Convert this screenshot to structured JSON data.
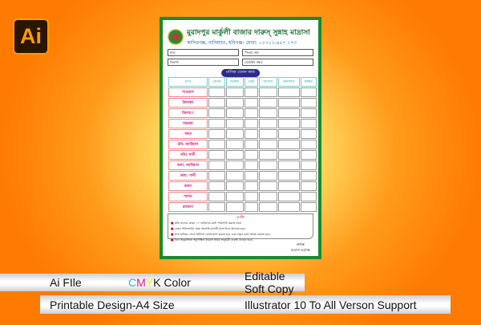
{
  "logo": {
    "text": "Ai"
  },
  "document": {
    "title": "মুরাদপুর মার্কুলী বাজার দারুস্ সুন্নাহ মাদ্রাসা",
    "subtitle": "কাদিরগঞ্জ, বানিয়াচং, হবিগঞ্জ। মোবা: ০১৭১১-৪৫৭ ১৭৩",
    "fields": [
      "নাম:",
      "পিতার নাম:",
      "বিভাগ:",
      "মোবাইল নম্বর:"
    ],
    "card_title": "মাসিক বেতন কার্ড",
    "headers": [
      "মাস",
      "বেতন",
      "বকেয়া",
      "মোট",
      "আদায়",
      "অনাদায়",
      "স্বাক্ষর"
    ],
    "months": [
      "শাওয়াল",
      "জিলকদ",
      "জিলহজ্ব",
      "মহররম",
      "সফর",
      "রবি: আউয়াল",
      "রবিঃ সানী",
      "জমা: আউয়াল",
      "জমা: সানী",
      "রজব",
      "শাবান",
      "রমজান"
    ],
    "notes_title": "নোটিশ",
    "notes": [
      "প্রতি মাসের বেতন ১০ তারিখের মধ্যে পরিশোধ করতে হবে।",
      "বেতন পরিশোধের সময় অবশ্যই কার্ডটি সঙ্গে নিয়ে আসতে হবে।",
      "কার্ড হারিয়ে গেলে অফিসে যোগাযোগ করতে হবে এবং নতুন কার্ড সংগ্রহ করতে হবে।",
      "বিনা অনুমতিতে অনুপস্থিত থাকলে নিয়ম অনুযায়ী ব্যবস্থা নেওয়া হবে।"
    ],
    "signature": [
      "অধ্যক্ষ",
      "মাদ্রাসা কর্তৃপক্ষ"
    ]
  },
  "features": {
    "ai_file": "Ai FIle",
    "cmyk": {
      "c": "C",
      "m": "M",
      "y": "Y",
      "k": "K Color"
    },
    "editable": "Editable Soft Copy",
    "printable": "Printable Design-A4 Size",
    "support": "Illustrator 10 To All Verson Support"
  },
  "colors": {
    "border": "#1b8a2d",
    "background": "#ff8c00",
    "cyan": "#29b6d8",
    "magenta": "#e0148c",
    "yellow": "#ffe000"
  }
}
